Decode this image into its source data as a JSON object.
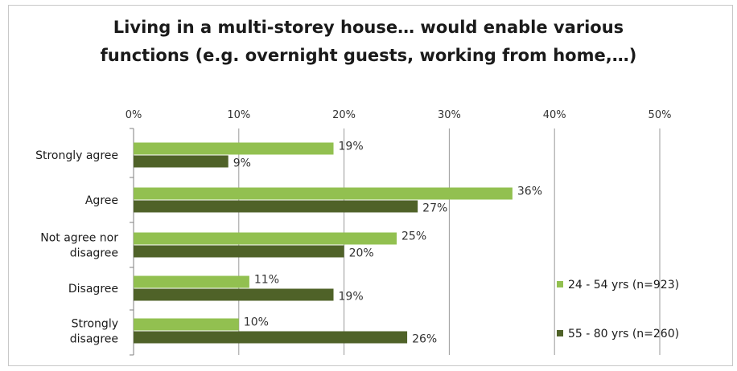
{
  "chart_data": {
    "type": "bar",
    "orientation": "horizontal",
    "title_lines": [
      "Living in a multi-storey house… would enable various",
      "functions (e.g. overnight guests, working from home,…)"
    ],
    "categories": [
      [
        "Strongly agree"
      ],
      [
        "Agree"
      ],
      [
        "Not agree nor",
        "disagree"
      ],
      [
        "Disagree"
      ],
      [
        "Strongly",
        "disagree"
      ]
    ],
    "series": [
      {
        "name": "24 - 54 yrs (n=923)",
        "color": "#92c050",
        "values": [
          19,
          36,
          25,
          11,
          10
        ]
      },
      {
        "name": "55 - 80 yrs (n=260)",
        "color": "#4f6228",
        "values": [
          9,
          27,
          20,
          19,
          26
        ]
      }
    ],
    "value_labels": [
      [
        "19%",
        "36%",
        "25%",
        "11%",
        "10%"
      ],
      [
        "9%",
        "27%",
        "20%",
        "19%",
        "26%"
      ]
    ],
    "xlim": [
      0,
      50
    ],
    "x_ticks": [
      "0%",
      "10%",
      "20%",
      "30%",
      "40%",
      "50%"
    ],
    "x_axis_position": "top",
    "grid": true,
    "legend_position": "right"
  }
}
